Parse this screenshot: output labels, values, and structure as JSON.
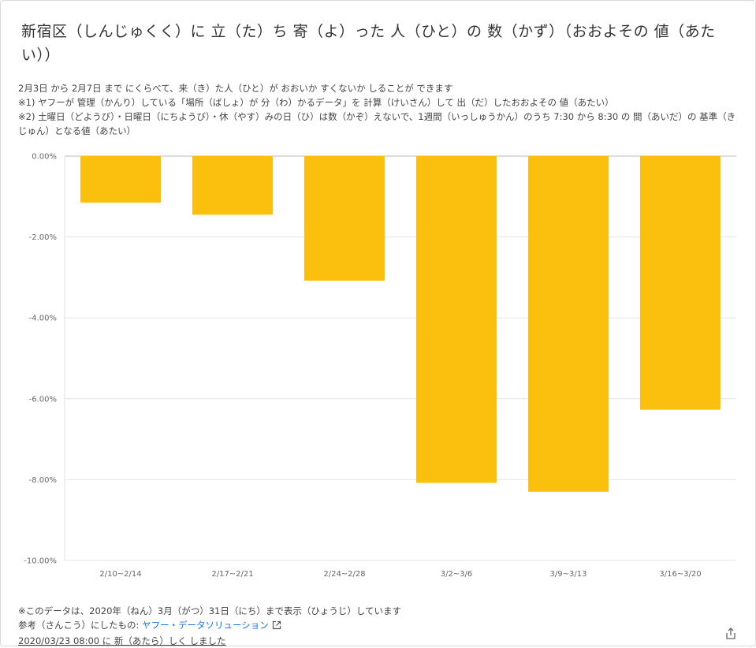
{
  "header": {
    "title": "新宿区（しんじゅくく）に 立（た）ち 寄（よ）った 人（ひと）の 数（かず）（おおよその 値（あたい））"
  },
  "notes": [
    "2月3日 から 2月7日 まで にくらべて、来（き）た人（ひと）が おおいか すくないか しることが できます",
    "※1) ヤフーが 管理（かんり）している「場所（ばしょ）が 分（わ）かるデータ」を 計算（けいさん）して 出（だ）したおおよその 値（あたい）",
    "※2) 土曜日（どようび）・日曜日（にちようび）・休（やす）みの日（ひ）は数（かぞ）えないで、1週間（いっしゅうかん）のうち 7:30 から 8:30 の 間（あいだ）の 基準（きじゅん）となる値（あたい）"
  ],
  "chart_data": {
    "type": "bar",
    "categories": [
      "2/10~2/14",
      "2/17~2/21",
      "2/24~2/28",
      "3/2~3/6",
      "3/9~3/13",
      "3/16~3/20"
    ],
    "values": [
      -1.15,
      -1.45,
      -3.08,
      -8.08,
      -8.3,
      -6.27
    ],
    "yticks": [
      "0.00%",
      "-2.00%",
      "-4.00%",
      "-6.00%",
      "-8.00%",
      "-10.00%"
    ],
    "ylim": [
      -10,
      0
    ],
    "bar_color": "#fbbf0e",
    "grid": true
  },
  "footer": {
    "data_note": "※このデータは、2020年（ねん）3月（がつ）31日（にち）まで表示（ひょうじ）しています",
    "reference_label": "参考（さんこう）にしたもの: ",
    "reference_link": "ヤフー・データソリューション",
    "updated": "2020/03/23 08:00 に 新（あたら）しく しました"
  },
  "icons": {
    "external_link": "external-link-icon",
    "share": "share-icon"
  }
}
